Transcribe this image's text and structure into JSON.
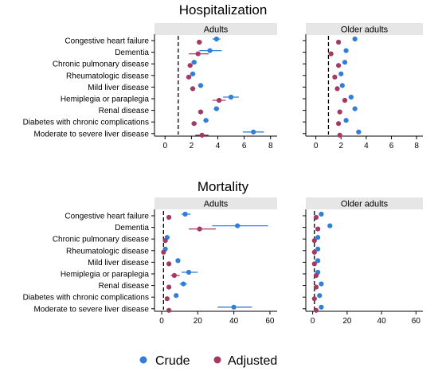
{
  "colors": {
    "crude": "#2f7fd8",
    "adjusted": "#a33a64",
    "strip_bg": "#e6e6e6",
    "reference_line": "#000000"
  },
  "legend": {
    "items": [
      {
        "key": "crude",
        "label": "Crude"
      },
      {
        "key": "adjusted",
        "label": "Adjusted"
      }
    ]
  },
  "chart_data": [
    {
      "type": "scatter",
      "section": "Hospitalization",
      "title": "Adults",
      "reference_line": 1,
      "xlim": [
        -0.8,
        8.5
      ],
      "xticks": [
        0,
        2,
        4,
        6,
        8
      ],
      "categories": [
        "Congestive heart failure",
        "Dementia",
        "Chronic pulmonary disease",
        "Rheumatologic disease",
        "Mild liver disease",
        "Hemiplegia or paraplegia",
        "Renal disease",
        "Diabetes with chronic complications",
        "Moderate to severe liver disease"
      ],
      "series": [
        {
          "name": "Crude",
          "values": [
            3.9,
            3.4,
            2.2,
            2.1,
            2.7,
            5.0,
            3.9,
            3.1,
            6.7
          ],
          "ci_low": [
            3.6,
            2.6,
            2.0,
            1.9,
            2.5,
            4.4,
            3.7,
            2.9,
            5.9
          ],
          "ci_high": [
            4.2,
            4.3,
            2.4,
            2.3,
            2.9,
            5.6,
            4.1,
            3.3,
            7.5
          ]
        },
        {
          "name": "Adjusted",
          "values": [
            2.6,
            2.5,
            1.9,
            1.8,
            2.1,
            4.1,
            2.7,
            2.2,
            2.8
          ],
          "ci_low": [
            2.4,
            1.8,
            1.7,
            1.6,
            1.9,
            3.6,
            2.5,
            2.0,
            2.3
          ],
          "ci_high": [
            2.8,
            3.3,
            2.1,
            2.0,
            2.3,
            4.6,
            2.9,
            2.4,
            3.3
          ]
        }
      ]
    },
    {
      "type": "scatter",
      "section": "Hospitalization",
      "title": "Older adults",
      "reference_line": 1,
      "xlim": [
        -0.8,
        8.5
      ],
      "xticks": [
        0,
        2,
        4,
        6,
        8
      ],
      "categories": [
        "Congestive heart failure",
        "Dementia",
        "Chronic pulmonary disease",
        "Rheumatologic disease",
        "Mild liver disease",
        "Hemiplegia or paraplegia",
        "Renal disease",
        "Diabetes with chronic complications",
        "Moderate to severe liver disease"
      ],
      "series": [
        {
          "name": "Crude",
          "values": [
            3.1,
            2.4,
            2.3,
            2.0,
            2.1,
            2.8,
            3.1,
            2.4,
            3.4
          ],
          "ci_low": [
            3.0,
            2.3,
            2.2,
            1.9,
            2.0,
            2.6,
            3.0,
            2.3,
            3.2
          ],
          "ci_high": [
            3.2,
            2.5,
            2.4,
            2.1,
            2.2,
            3.0,
            3.2,
            2.5,
            3.6
          ]
        },
        {
          "name": "Adjusted",
          "values": [
            1.8,
            1.2,
            1.8,
            1.5,
            1.7,
            2.3,
            1.9,
            1.8,
            1.9
          ],
          "ci_low": [
            1.7,
            1.1,
            1.7,
            1.4,
            1.6,
            2.1,
            1.8,
            1.7,
            1.8
          ],
          "ci_high": [
            1.9,
            1.3,
            1.9,
            1.6,
            1.8,
            2.5,
            2.0,
            1.9,
            2.0
          ]
        }
      ]
    },
    {
      "type": "scatter",
      "section": "Mortality",
      "title": "Adults",
      "reference_line": 1,
      "xlim": [
        -4,
        64
      ],
      "xticks": [
        0,
        20,
        40,
        60
      ],
      "categories": [
        "Congestive heart failure",
        "Dementia",
        "Chronic pulmonary disease",
        "Rheumatologic disease",
        "Mild liver disease",
        "Hemiplegia or paraplegia",
        "Renal disease",
        "Diabetes with chronic complications",
        "Moderate to severe liver disease"
      ],
      "series": [
        {
          "name": "Crude",
          "values": [
            13,
            42,
            3,
            2,
            9,
            15,
            12,
            8,
            40
          ],
          "ci_low": [
            11,
            28,
            2,
            1,
            8,
            11,
            10,
            7,
            31
          ],
          "ci_high": [
            16,
            59,
            4,
            3,
            10,
            20,
            14,
            9,
            50
          ]
        },
        {
          "name": "Adjusted",
          "values": [
            4,
            21,
            2,
            1,
            4,
            7,
            4,
            3,
            4
          ],
          "ci_low": [
            3,
            15,
            1,
            0.5,
            3,
            5,
            3,
            2,
            3
          ],
          "ci_high": [
            5,
            30,
            3,
            2,
            5,
            10,
            5,
            4,
            5
          ]
        }
      ]
    },
    {
      "type": "scatter",
      "section": "Mortality",
      "title": "Older adults",
      "reference_line": 1,
      "xlim": [
        -4,
        64
      ],
      "xticks": [
        0,
        20,
        40,
        60
      ],
      "categories": [
        "Congestive heart failure",
        "Dementia",
        "Chronic pulmonary disease",
        "Rheumatologic disease",
        "Mild liver disease",
        "Hemiplegia or paraplegia",
        "Renal disease",
        "Diabetes with chronic complications",
        "Moderate to severe liver disease"
      ],
      "series": [
        {
          "name": "Crude",
          "values": [
            5,
            10,
            3,
            3,
            3,
            3,
            5,
            4,
            5
          ],
          "ci_low": [
            4.5,
            9.5,
            2.7,
            2.7,
            2.7,
            2.7,
            4.6,
            3.6,
            4.5
          ],
          "ci_high": [
            5.5,
            10.5,
            3.3,
            3.3,
            3.3,
            3.3,
            5.4,
            4.4,
            5.5
          ]
        },
        {
          "name": "Adjusted",
          "values": [
            2,
            3,
            1,
            1,
            1,
            2,
            2,
            1,
            2
          ],
          "ci_low": [
            1.8,
            2.6,
            0.8,
            0.8,
            0.8,
            1.7,
            1.8,
            0.8,
            1.8
          ],
          "ci_high": [
            2.2,
            3.4,
            1.2,
            1.2,
            1.2,
            2.3,
            2.2,
            1.2,
            2.2
          ]
        }
      ]
    }
  ]
}
